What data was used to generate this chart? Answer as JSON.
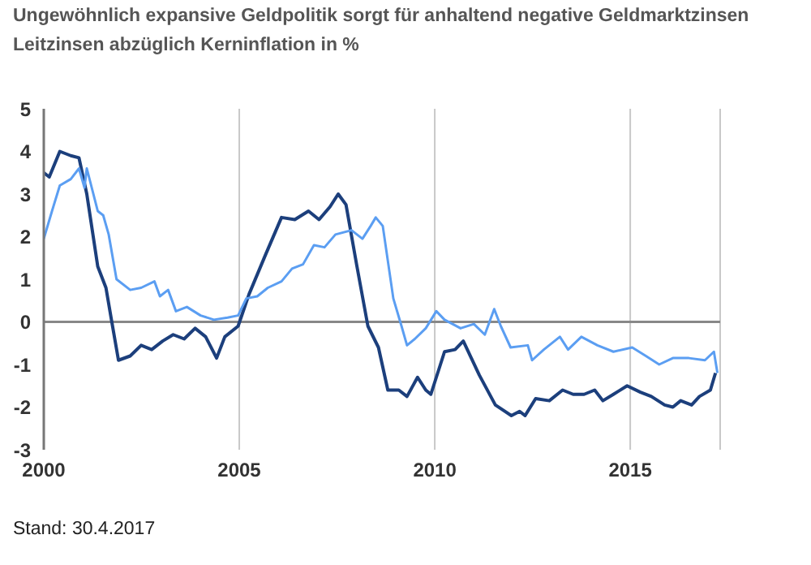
{
  "chart_data": {
    "type": "line",
    "title": "Ungewöhnlich expansive Geldpolitik sorgt für anhaltend negative Geldmarktzinsen",
    "subtitle": "Leitzinsen abzüglich Kerninflation in %",
    "annotations": [
      "Stand: 30.4.2017"
    ],
    "series": [
      {
        "color": "#1c3f7c",
        "x": [
          2000.0,
          2000.14,
          2000.41,
          2000.69,
          2000.9,
          2001.1,
          2001.38,
          2001.59,
          2001.73,
          2001.91,
          2002.21,
          2002.49,
          2002.76,
          2003.04,
          2003.31,
          2003.59,
          2003.87,
          2004.14,
          2004.42,
          2004.63,
          2004.97,
          2005.25,
          2005.66,
          2006.08,
          2006.42,
          2006.77,
          2007.04,
          2007.32,
          2007.53,
          2007.73,
          2008.01,
          2008.29,
          2008.56,
          2008.8,
          2009.08,
          2009.29,
          2009.56,
          2009.77,
          2009.9,
          2010.25,
          2010.52,
          2010.73,
          2011.14,
          2011.55,
          2011.96,
          2012.17,
          2012.31,
          2012.58,
          2012.93,
          2013.27,
          2013.54,
          2013.82,
          2014.09,
          2014.3,
          2014.57,
          2014.92,
          2015.26,
          2015.54,
          2015.88,
          2016.09,
          2016.29,
          2016.57,
          2016.77,
          2017.05,
          2017.18
        ],
        "values": [
          3.5,
          3.4,
          4.0,
          3.9,
          3.85,
          3.0,
          1.3,
          0.8,
          0.05,
          -0.9,
          -0.8,
          -0.55,
          -0.65,
          -0.45,
          -0.3,
          -0.4,
          -0.15,
          -0.35,
          -0.85,
          -0.35,
          -0.1,
          0.65,
          1.55,
          2.45,
          2.4,
          2.6,
          2.4,
          2.7,
          3.0,
          2.75,
          1.3,
          -0.1,
          -0.6,
          -1.6,
          -1.6,
          -1.75,
          -1.3,
          -1.6,
          -1.7,
          -0.7,
          -0.65,
          -0.45,
          -1.25,
          -1.95,
          -2.2,
          -2.1,
          -2.2,
          -1.8,
          -1.85,
          -1.6,
          -1.7,
          -1.7,
          -1.6,
          -1.85,
          -1.7,
          -1.5,
          -1.65,
          -1.75,
          -1.95,
          -2.0,
          -1.85,
          -1.95,
          -1.75,
          -1.6,
          -1.2
        ]
      },
      {
        "color": "#5b9ef2",
        "x": [
          2000.0,
          2000.21,
          2000.41,
          2000.69,
          2000.9,
          2001.04,
          2001.1,
          2001.38,
          2001.52,
          2001.66,
          2001.86,
          2002.21,
          2002.49,
          2002.83,
          2002.97,
          2003.18,
          2003.38,
          2003.66,
          2004.01,
          2004.35,
          2004.7,
          2004.97,
          2005.18,
          2005.46,
          2005.73,
          2006.08,
          2006.35,
          2006.63,
          2006.91,
          2007.18,
          2007.46,
          2007.87,
          2008.15,
          2008.36,
          2008.49,
          2008.67,
          2008.94,
          2009.15,
          2009.29,
          2009.49,
          2009.77,
          2010.04,
          2010.25,
          2010.66,
          2011.0,
          2011.28,
          2011.52,
          2011.69,
          2011.94,
          2012.38,
          2012.49,
          2012.79,
          2013.2,
          2013.41,
          2013.75,
          2014.16,
          2014.57,
          2015.05,
          2015.4,
          2015.74,
          2016.09,
          2016.5,
          2016.91,
          2017.14,
          2017.23
        ],
        "values": [
          1.95,
          2.6,
          3.2,
          3.35,
          3.6,
          3.15,
          3.6,
          2.6,
          2.5,
          2.05,
          1.0,
          0.75,
          0.8,
          0.95,
          0.6,
          0.75,
          0.25,
          0.35,
          0.15,
          0.05,
          0.1,
          0.15,
          0.55,
          0.6,
          0.8,
          0.95,
          1.25,
          1.35,
          1.8,
          1.75,
          2.05,
          2.15,
          1.95,
          2.25,
          2.45,
          2.25,
          0.55,
          -0.1,
          -0.55,
          -0.4,
          -0.15,
          0.25,
          0.05,
          -0.15,
          -0.05,
          -0.3,
          0.3,
          -0.1,
          -0.6,
          -0.55,
          -0.9,
          -0.65,
          -0.35,
          -0.65,
          -0.35,
          -0.55,
          -0.7,
          -0.6,
          -0.8,
          -1.0,
          -0.85,
          -0.85,
          -0.9,
          -0.7,
          -1.2
        ]
      }
    ],
    "xlim": [
      2000,
      2017.3
    ],
    "xticks": [
      2000,
      2005,
      2010,
      2015
    ],
    "ylim": [
      -3,
      5
    ],
    "yticks": [
      -3,
      -2,
      -1,
      0,
      1,
      2,
      3,
      4,
      5
    ],
    "grid": "x",
    "ref_lines": [
      {
        "axis": "y",
        "value": 0,
        "color": "#888888"
      }
    ]
  }
}
